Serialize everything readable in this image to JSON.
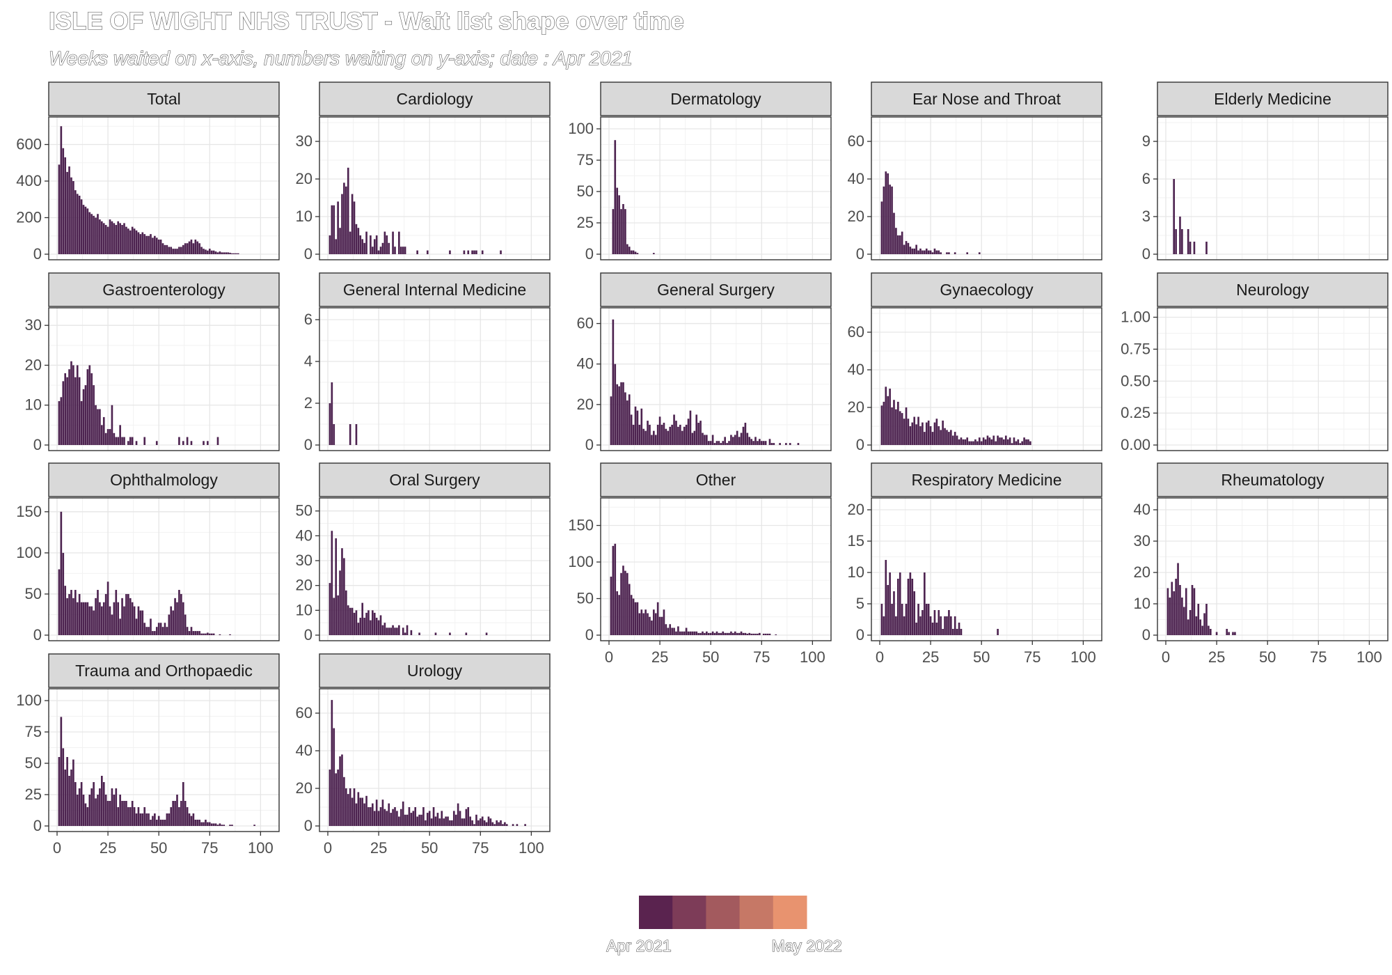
{
  "chart_data": {
    "type": "bar",
    "title": "ISLE OF WIGHT NHS TRUST - Wait list shape over time",
    "subtitle": "Weeks waited on x-axis, numbers waiting on y-axis; date : Apr 2021",
    "legend": {
      "position": "bottom",
      "colors": [
        "#5a234f",
        "#7d3c58",
        "#a35a5e",
        "#c67866",
        "#e8936f"
      ],
      "labels": [
        "Apr 2021",
        "May 2022"
      ]
    },
    "xlim": [
      0,
      105
    ],
    "x_ticks": [
      0,
      25,
      50,
      75,
      100
    ],
    "bar_color": "#4d2350",
    "panels": [
      {
        "name": "Total",
        "ylim": [
          0,
          720
        ],
        "y_ticks": [
          0,
          200,
          400,
          600
        ],
        "values": [
          490,
          700,
          580,
          530,
          450,
          480,
          420,
          400,
          350,
          330,
          320,
          300,
          270,
          260,
          250,
          230,
          220,
          210,
          200,
          220,
          190,
          180,
          170,
          160,
          150,
          190,
          180,
          170,
          160,
          180,
          170,
          160,
          170,
          150,
          140,
          130,
          150,
          140,
          130,
          120,
          110,
          120,
          110,
          100,
          100,
          110,
          90,
          100,
          90,
          80,
          80,
          60,
          50,
          50,
          40,
          40,
          30,
          30,
          30,
          40,
          40,
          50,
          60,
          60,
          70,
          80,
          60,
          80,
          70,
          60,
          40,
          30,
          25,
          20,
          30,
          20,
          20,
          15,
          10,
          15,
          10,
          10,
          10,
          10,
          8,
          5,
          5,
          5,
          5
        ]
      },
      {
        "name": "Cardiology",
        "ylim": [
          0,
          35
        ],
        "y_ticks": [
          0,
          10,
          20,
          30
        ],
        "values": [
          5,
          13,
          13,
          4,
          14,
          7,
          16,
          19,
          18,
          23,
          6,
          16,
          14,
          8,
          7,
          5,
          4,
          3,
          6,
          0,
          5,
          2,
          4,
          5,
          1,
          2,
          3,
          6,
          5,
          3,
          0,
          6,
          2,
          0,
          6,
          2,
          2,
          2,
          0,
          0,
          0,
          0,
          0,
          1,
          0,
          0,
          0,
          0,
          1,
          0,
          0,
          0,
          0,
          0,
          0,
          0,
          0,
          0,
          0,
          1,
          0,
          0,
          0,
          0,
          0,
          0,
          1,
          0,
          1,
          0,
          1,
          1,
          1,
          0,
          0,
          1,
          0,
          0,
          0,
          0,
          0,
          0,
          0,
          0,
          1
        ]
      },
      {
        "name": "Dermatology",
        "ylim": [
          0,
          105
        ],
        "y_ticks": [
          0,
          25,
          50,
          75,
          100
        ],
        "values": [
          0,
          36,
          91,
          53,
          47,
          36,
          40,
          36,
          8,
          6,
          3,
          3,
          2,
          1,
          0,
          0,
          0,
          0,
          0,
          0,
          0,
          1
        ]
      },
      {
        "name": "Ear Nose and Throat",
        "ylim": [
          0,
          70
        ],
        "y_ticks": [
          0,
          20,
          40,
          60
        ],
        "values": [
          28,
          36,
          44,
          43,
          37,
          36,
          22,
          14,
          10,
          10,
          12,
          5,
          7,
          6,
          4,
          3,
          3,
          5,
          2,
          3,
          2,
          2,
          3,
          2,
          2,
          1,
          3,
          2,
          2,
          1,
          0,
          0,
          1,
          1,
          0,
          0,
          1,
          0,
          0,
          0,
          0,
          0,
          1,
          0,
          0,
          0,
          0,
          0,
          1
        ]
      },
      {
        "name": "Elderly Medicine",
        "ylim": [
          0,
          10.5
        ],
        "y_ticks": [
          0,
          3,
          6,
          9
        ],
        "values": [
          0,
          0,
          0,
          6,
          2,
          0,
          3,
          2,
          0,
          0,
          2,
          1,
          0,
          1,
          0,
          0,
          0,
          0,
          0,
          1
        ]
      },
      {
        "name": "Gastroenterology",
        "ylim": [
          0,
          33
        ],
        "y_ticks": [
          0,
          10,
          20,
          30
        ],
        "values": [
          11,
          12,
          16,
          18,
          17,
          19,
          21,
          20,
          17,
          20,
          17,
          11,
          14,
          15,
          19,
          20,
          18,
          15,
          10,
          9,
          9,
          5,
          7,
          3,
          4,
          4,
          10,
          3,
          2,
          2,
          5,
          2,
          2,
          0,
          1,
          2,
          2,
          0,
          1,
          0,
          0,
          0,
          2,
          0,
          0,
          0,
          0,
          0,
          1,
          0,
          0,
          0,
          0,
          0,
          0,
          0,
          0,
          0,
          0,
          2,
          0,
          1,
          0,
          2,
          0,
          1,
          0,
          0,
          0,
          0,
          0,
          1,
          0,
          1,
          0,
          0,
          0,
          0,
          2
        ]
      },
      {
        "name": "General Internal Medicine",
        "ylim": [
          0,
          6.3
        ],
        "y_ticks": [
          0,
          2,
          4,
          6
        ],
        "values": [
          2,
          3,
          1,
          0,
          0,
          0,
          0,
          0,
          0,
          0,
          1,
          0,
          0,
          1
        ]
      },
      {
        "name": "General Surgery",
        "ylim": [
          0,
          65
        ],
        "y_ticks": [
          0,
          20,
          40,
          60
        ],
        "values": [
          24,
          62,
          40,
          30,
          29,
          31,
          31,
          26,
          22,
          25,
          15,
          10,
          19,
          17,
          10,
          18,
          8,
          7,
          12,
          10,
          5,
          7,
          5,
          10,
          14,
          10,
          11,
          8,
          7,
          9,
          10,
          15,
          12,
          9,
          10,
          7,
          9,
          10,
          13,
          17,
          6,
          7,
          15,
          11,
          12,
          6,
          5,
          5,
          2,
          2,
          5,
          1,
          2,
          2,
          1,
          2,
          4,
          1,
          2,
          5,
          4,
          5,
          7,
          4,
          6,
          9,
          11,
          6,
          4,
          3,
          2,
          4,
          2,
          3,
          2,
          2,
          2,
          0,
          3,
          1,
          1,
          0,
          0,
          1,
          0,
          0,
          1,
          0,
          1,
          0,
          0,
          0,
          1
        ]
      },
      {
        "name": "Gynaecology",
        "ylim": [
          0,
          70
        ],
        "y_ticks": [
          0,
          20,
          40,
          60
        ],
        "values": [
          21,
          23,
          31,
          26,
          30,
          20,
          24,
          19,
          23,
          18,
          17,
          14,
          20,
          14,
          10,
          12,
          15,
          11,
          15,
          10,
          12,
          7,
          12,
          13,
          10,
          7,
          12,
          14,
          10,
          8,
          13,
          9,
          8,
          7,
          8,
          5,
          7,
          5,
          3,
          4,
          3,
          3,
          4,
          2,
          2,
          2,
          3,
          2,
          4,
          2,
          4,
          3,
          5,
          4,
          3,
          5,
          2,
          5,
          4,
          4,
          3,
          5,
          3,
          4,
          1,
          4,
          2,
          3,
          1,
          2,
          4,
          3,
          3,
          2
        ]
      },
      {
        "name": "Neurology",
        "ylim": [
          0,
          1.03
        ],
        "y_ticks": [
          0,
          0.25,
          0.5,
          0.75,
          1.0
        ],
        "y_tick_labels": [
          "0.00",
          "0.25",
          "0.50",
          "0.75",
          "1.00"
        ],
        "values": []
      },
      {
        "name": "Ophthalmology",
        "ylim": [
          0,
          160
        ],
        "y_ticks": [
          0,
          50,
          100,
          150
        ],
        "values": [
          80,
          150,
          100,
          60,
          45,
          50,
          55,
          45,
          55,
          40,
          50,
          40,
          40,
          40,
          40,
          35,
          35,
          30,
          45,
          55,
          40,
          35,
          40,
          50,
          65,
          35,
          25,
          40,
          55,
          40,
          20,
          45,
          35,
          50,
          50,
          45,
          40,
          35,
          20,
          35,
          30,
          30,
          15,
          10,
          10,
          20,
          5,
          5,
          10,
          15,
          15,
          10,
          15,
          10,
          25,
          35,
          30,
          45,
          40,
          55,
          50,
          40,
          25,
          10,
          5,
          10,
          5,
          5,
          5,
          5,
          2,
          2,
          2,
          3,
          2,
          2,
          2,
          0,
          0,
          1,
          0,
          0,
          0,
          0,
          1
        ]
      },
      {
        "name": "Oral Surgery",
        "ylim": [
          0,
          53
        ],
        "y_ticks": [
          0,
          10,
          20,
          30,
          40,
          50
        ],
        "values": [
          21,
          42,
          15,
          39,
          16,
          26,
          35,
          31,
          18,
          12,
          11,
          11,
          9,
          10,
          5,
          7,
          13,
          7,
          9,
          10,
          6,
          10,
          9,
          7,
          6,
          8,
          4,
          5,
          3,
          3,
          3,
          4,
          3,
          3,
          4,
          0,
          3,
          1,
          4,
          0,
          2,
          0,
          0,
          0,
          1,
          0,
          0,
          0,
          0,
          0,
          0,
          0,
          1,
          0,
          0,
          0,
          0,
          0,
          0,
          1,
          0,
          0,
          0,
          0,
          0,
          0,
          0,
          1,
          0,
          0,
          0,
          0,
          0,
          0,
          0,
          0,
          0,
          1
        ]
      },
      {
        "name": "Other",
        "ylim": [
          0,
          180
        ],
        "y_ticks": [
          0,
          50,
          100,
          150
        ],
        "values": [
          80,
          122,
          125,
          60,
          55,
          85,
          95,
          88,
          85,
          70,
          55,
          50,
          45,
          45,
          30,
          35,
          30,
          35,
          30,
          25,
          20,
          35,
          30,
          45,
          25,
          25,
          35,
          15,
          10,
          15,
          10,
          10,
          5,
          12,
          5,
          5,
          5,
          10,
          5,
          5,
          5,
          5,
          5,
          3,
          3,
          5,
          3,
          5,
          3,
          3,
          5,
          3,
          5,
          3,
          3,
          5,
          3,
          3,
          3,
          5,
          3,
          5,
          3,
          3,
          5,
          3,
          3,
          2,
          3,
          2,
          2,
          2,
          2,
          3,
          0,
          2,
          2,
          2,
          2,
          0,
          0,
          1
        ]
      },
      {
        "name": "Respiratory Medicine",
        "ylim": [
          0,
          21
        ],
        "y_ticks": [
          0,
          5,
          10,
          15,
          20
        ],
        "values": [
          5,
          3,
          12,
          8,
          10,
          5,
          7,
          3,
          9,
          10,
          5,
          3,
          5,
          9,
          10,
          9,
          7,
          2,
          5,
          3,
          4,
          10,
          5,
          5,
          3,
          2,
          4,
          2,
          4,
          3,
          1,
          3,
          3,
          4,
          3,
          1,
          3,
          1,
          2,
          1,
          0,
          0,
          0,
          0,
          0,
          0,
          0,
          0,
          0,
          0,
          0,
          0,
          0,
          0,
          0,
          0,
          0,
          1
        ]
      },
      {
        "name": "Rheumatology",
        "ylim": [
          0,
          42
        ],
        "y_ticks": [
          0,
          10,
          20,
          30,
          40
        ],
        "values": [
          15,
          12,
          17,
          14,
          18,
          23,
          16,
          12,
          9,
          15,
          5,
          8,
          16,
          15,
          6,
          10,
          5,
          3,
          7,
          10,
          3,
          2,
          0,
          0,
          1,
          0,
          0,
          0,
          0,
          2,
          1,
          0,
          1,
          1
        ]
      },
      {
        "name": "Trauma and Orthopaedic",
        "ylim": [
          0,
          105
        ],
        "y_ticks": [
          0,
          25,
          50,
          75,
          100
        ],
        "values": [
          55,
          87,
          62,
          45,
          55,
          40,
          45,
          53,
          35,
          25,
          30,
          35,
          25,
          18,
          15,
          25,
          30,
          35,
          22,
          25,
          30,
          40,
          35,
          25,
          20,
          20,
          30,
          25,
          30,
          15,
          25,
          20,
          20,
          20,
          15,
          15,
          20,
          15,
          10,
          15,
          10,
          10,
          15,
          10,
          10,
          5,
          8,
          10,
          5,
          8,
          5,
          5,
          5,
          10,
          10,
          15,
          20,
          20,
          25,
          15,
          20,
          35,
          20,
          15,
          10,
          8,
          10,
          5,
          5,
          5,
          3,
          3,
          5,
          3,
          3,
          2,
          2,
          2,
          1,
          2,
          1,
          1,
          0,
          0,
          1,
          1,
          0,
          0,
          0,
          0,
          0,
          0,
          0,
          0,
          0,
          0,
          1
        ]
      },
      {
        "name": "Urology",
        "ylim": [
          0,
          70
        ],
        "y_ticks": [
          0,
          20,
          40,
          60
        ],
        "values": [
          30,
          67,
          52,
          28,
          30,
          37,
          38,
          26,
          20,
          17,
          20,
          15,
          20,
          12,
          18,
          15,
          15,
          12,
          16,
          10,
          10,
          12,
          8,
          14,
          8,
          10,
          14,
          9,
          8,
          12,
          7,
          9,
          10,
          8,
          5,
          9,
          13,
          6,
          6,
          10,
          7,
          8,
          10,
          5,
          6,
          6,
          10,
          3,
          7,
          8,
          4,
          10,
          5,
          7,
          4,
          8,
          4,
          5,
          5,
          3,
          3,
          8,
          6,
          12,
          8,
          4,
          4,
          9,
          10,
          5,
          3,
          1,
          6,
          3,
          4,
          5,
          3,
          2,
          5,
          4,
          2,
          1,
          3,
          2,
          3,
          1,
          2,
          1,
          0,
          0,
          1,
          0,
          1,
          0,
          0,
          0,
          1
        ]
      }
    ]
  }
}
